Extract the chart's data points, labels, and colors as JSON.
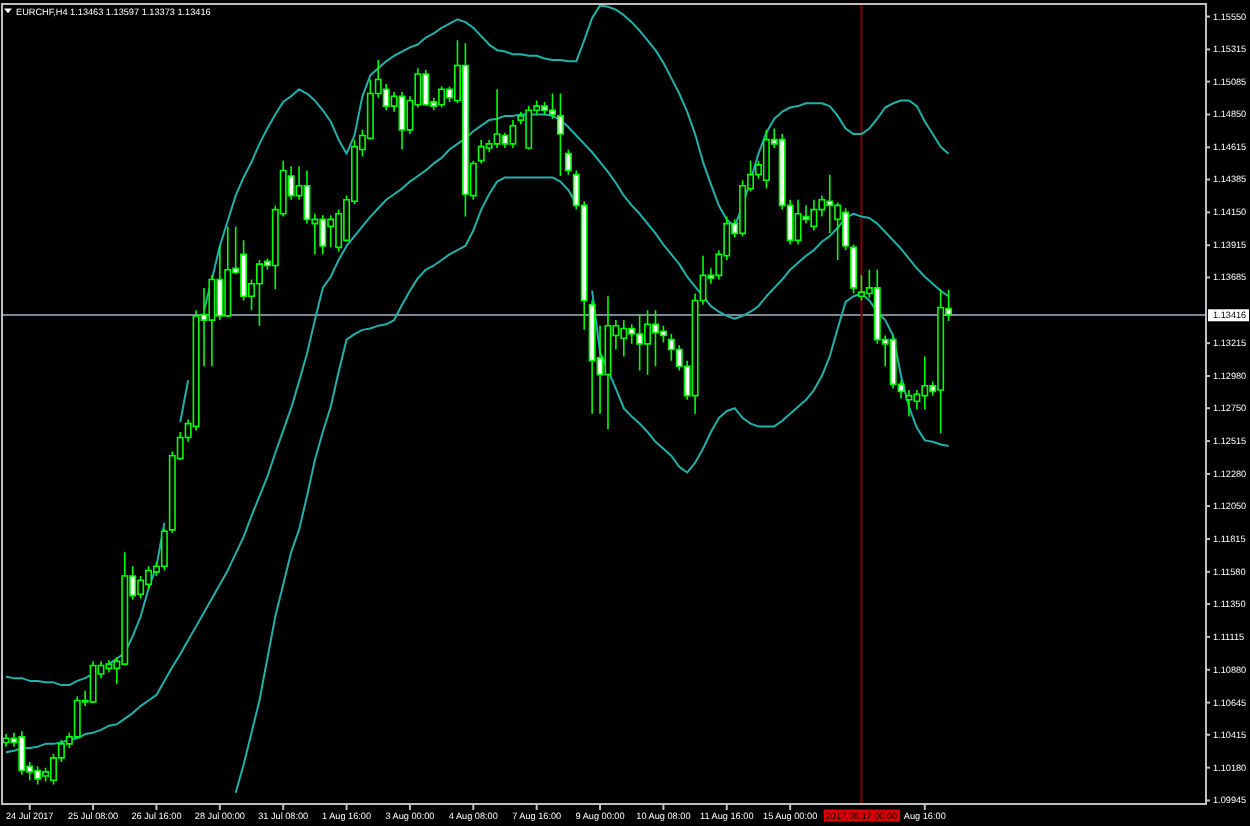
{
  "chart_data": {
    "type": "candlestick",
    "title": "EURCHF,H4 1.13463 1.13597 1.13373 1.13416",
    "color": "#00ff00",
    "categories": [
      null,
      null,
      null,
      "24 Jul 2017",
      null,
      null,
      null,
      null,
      null,
      null,
      null,
      "25 Jul 08:00",
      null,
      null,
      null,
      null,
      null,
      null,
      null,
      "26 Jul 16:00",
      null,
      null,
      null,
      null,
      null,
      null,
      null,
      "28 Jul 00:00",
      null,
      null,
      null,
      null,
      null,
      null,
      null,
      "31 Jul 08:00",
      null,
      null,
      null,
      null,
      null,
      null,
      null,
      "1 Aug 16:00",
      null,
      null,
      null,
      null,
      null,
      null,
      null,
      "3 Aug 00:00",
      null,
      null,
      null,
      null,
      null,
      null,
      null,
      "4 Aug 08:00",
      null,
      null,
      null,
      null,
      null,
      null,
      null,
      "7 Aug 16:00",
      null,
      null,
      null,
      null,
      null,
      null,
      null,
      "9 Aug 00:00",
      null,
      null,
      null,
      null,
      null,
      null,
      null,
      "10 Aug 08:00",
      null,
      null,
      null,
      null,
      null,
      null,
      null,
      "11 Aug 16:00",
      null,
      null,
      null,
      null,
      null,
      null,
      null,
      "15 Aug 00:00",
      null,
      null,
      null,
      null,
      null,
      null,
      null,
      null,
      "2017.08.17 00:00",
      null,
      null,
      null,
      null,
      null,
      null,
      null,
      "Aug 16:00",
      null,
      null,
      null
    ],
    "ohlc": [
      [
        1.1036,
        1.1042,
        1.1033,
        1.1039
      ],
      [
        1.1039,
        1.1043,
        1.1033,
        1.1036
      ],
      [
        1.104,
        1.1044,
        1.1013,
        1.1016
      ],
      [
        1.1019,
        1.1022,
        1.1009,
        1.1015
      ],
      [
        1.1016,
        1.1019,
        1.1006,
        1.101
      ],
      [
        1.1012,
        1.1018,
        1.1008,
        1.1015
      ],
      [
        1.1009,
        1.1028,
        1.1006,
        1.1025
      ],
      [
        1.1025,
        1.1038,
        1.1022,
        1.1035
      ],
      [
        1.1035,
        1.1043,
        1.1032,
        1.104
      ],
      [
        1.104,
        1.1069,
        1.1039,
        1.1066
      ],
      [
        1.1066,
        1.1073,
        1.1062,
        1.1065
      ],
      [
        1.1065,
        1.1094,
        1.1064,
        1.1091
      ],
      [
        1.1085,
        1.1094,
        1.1082,
        1.1091
      ],
      [
        1.1089,
        1.1095,
        1.1086,
        1.1092
      ],
      [
        1.1089,
        1.1097,
        1.1078,
        1.1094
      ],
      [
        1.1092,
        1.1172,
        1.1091,
        1.1155
      ],
      [
        1.1155,
        1.1162,
        1.1138,
        1.1141
      ],
      [
        1.1142,
        1.1155,
        1.1139,
        1.1152
      ],
      [
        1.1149,
        1.1162,
        1.1146,
        1.1159
      ],
      [
        1.1158,
        1.1165,
        1.1155,
        1.1162
      ],
      [
        1.1162,
        1.1189,
        1.1159,
        1.1187
      ],
      [
        1.1188,
        1.1244,
        1.1186,
        1.1241
      ],
      [
        1.1239,
        1.1258,
        1.1238,
        1.1254
      ],
      [
        1.1254,
        1.1267,
        1.1251,
        1.1264
      ],
      [
        1.1262,
        1.1345,
        1.1259,
        1.1341
      ],
      [
        1.1342,
        1.1361,
        1.1305,
        1.1338
      ],
      [
        1.1338,
        1.137,
        1.1305,
        1.1367
      ],
      [
        1.1367,
        1.1391,
        1.1338,
        1.1341
      ],
      [
        1.1341,
        1.1405,
        1.134,
        1.1374
      ],
      [
        1.1375,
        1.1405,
        1.1371,
        1.1372
      ],
      [
        1.1385,
        1.1395,
        1.1352,
        1.1355
      ],
      [
        1.1355,
        1.1367,
        1.1345,
        1.1364
      ],
      [
        1.1364,
        1.1381,
        1.1334,
        1.1378
      ],
      [
        1.138,
        1.1382,
        1.1374,
        1.1377
      ],
      [
        1.1377,
        1.142,
        1.136,
        1.1417
      ],
      [
        1.1414,
        1.1452,
        1.1412,
        1.1445
      ],
      [
        1.1441,
        1.1448,
        1.1424,
        1.1427
      ],
      [
        1.1427,
        1.1448,
        1.1424,
        1.1434
      ],
      [
        1.1434,
        1.1445,
        1.1407,
        1.141
      ],
      [
        1.1407,
        1.1414,
        1.1385,
        1.141
      ],
      [
        1.141,
        1.1413,
        1.1385,
        1.1391
      ],
      [
        1.1405,
        1.1413,
        1.139,
        1.141
      ],
      [
        1.139,
        1.1417,
        1.1387,
        1.1414
      ],
      [
        1.1395,
        1.1427,
        1.1394,
        1.1424
      ],
      [
        1.1423,
        1.1467,
        1.1421,
        1.1462
      ],
      [
        1.146,
        1.1474,
        1.1455,
        1.147
      ],
      [
        1.1468,
        1.151,
        1.1467,
        1.15
      ],
      [
        1.15,
        1.1524,
        1.1497,
        1.151
      ],
      [
        1.1503,
        1.1507,
        1.1488,
        1.1491
      ],
      [
        1.1491,
        1.1501,
        1.1487,
        1.1498
      ],
      [
        1.1498,
        1.1501,
        1.146,
        1.1474
      ],
      [
        1.1474,
        1.1498,
        1.1471,
        1.1495
      ],
      [
        1.1492,
        1.1518,
        1.149,
        1.1514
      ],
      [
        1.1514,
        1.1517,
        1.1491,
        1.1492
      ],
      [
        1.1494,
        1.1497,
        1.1488,
        1.1491
      ],
      [
        1.1492,
        1.1505,
        1.149,
        1.1503
      ],
      [
        1.1503,
        1.1505,
        1.1494,
        1.1497
      ],
      [
        1.1495,
        1.1538,
        1.1493,
        1.152
      ],
      [
        1.152,
        1.1536,
        1.1412,
        1.1428
      ],
      [
        1.1427,
        1.1452,
        1.1424,
        1.145
      ],
      [
        1.1452,
        1.1467,
        1.145,
        1.1462
      ],
      [
        1.1461,
        1.1467,
        1.1458,
        1.1464
      ],
      [
        1.1464,
        1.1503,
        1.1461,
        1.1471
      ],
      [
        1.147,
        1.1472,
        1.1461,
        1.1464
      ],
      [
        1.1464,
        1.1481,
        1.1461,
        1.1477
      ],
      [
        1.1481,
        1.1487,
        1.1478,
        1.1484
      ],
      [
        1.1461,
        1.1491,
        1.146,
        1.1488
      ],
      [
        1.1488,
        1.1495,
        1.1485,
        1.1491
      ],
      [
        1.1491,
        1.1494,
        1.1485,
        1.1488
      ],
      [
        1.1488,
        1.15,
        1.1482,
        1.1485
      ],
      [
        1.1484,
        1.15,
        1.1441,
        1.1471
      ],
      [
        1.1457,
        1.146,
        1.1442,
        1.1445
      ],
      [
        1.1442,
        1.1445,
        1.1417,
        1.142
      ],
      [
        1.142,
        1.1423,
        1.1331,
        1.1352
      ],
      [
        1.1349,
        1.1352,
        1.1271,
        1.1309
      ],
      [
        1.1311,
        1.1334,
        1.1271,
        1.1299
      ],
      [
        1.1299,
        1.1355,
        1.126,
        1.1334
      ],
      [
        1.1327,
        1.1338,
        1.1317,
        1.1334
      ],
      [
        1.1325,
        1.1338,
        1.1312,
        1.1332
      ],
      [
        1.1332,
        1.1335,
        1.1321,
        1.1328
      ],
      [
        1.1328,
        1.1342,
        1.1302,
        1.1321
      ],
      [
        1.1321,
        1.1345,
        1.1299,
        1.1335
      ],
      [
        1.1335,
        1.1345,
        1.1305,
        1.1329
      ],
      [
        1.133,
        1.1334,
        1.1322,
        1.1327
      ],
      [
        1.1324,
        1.1328,
        1.1309,
        1.1317
      ],
      [
        1.1317,
        1.132,
        1.1302,
        1.1305
      ],
      [
        1.1305,
        1.1309,
        1.1281,
        1.1284
      ],
      [
        1.1284,
        1.1357,
        1.1271,
        1.1352
      ],
      [
        1.1352,
        1.1384,
        1.1349,
        1.137
      ],
      [
        1.137,
        1.1375,
        1.1364,
        1.1368
      ],
      [
        1.137,
        1.1388,
        1.1367,
        1.1385
      ],
      [
        1.1384,
        1.1412,
        1.1381,
        1.1407
      ],
      [
        1.1407,
        1.141,
        1.1397,
        1.14
      ],
      [
        1.14,
        1.1438,
        1.1398,
        1.1434
      ],
      [
        1.1432,
        1.1452,
        1.143,
        1.1442
      ],
      [
        1.1442,
        1.1452,
        1.1439,
        1.1449
      ],
      [
        1.1438,
        1.1474,
        1.1432,
        1.1467
      ],
      [
        1.1467,
        1.1475,
        1.1461,
        1.1464
      ],
      [
        1.1467,
        1.1471,
        1.1417,
        1.142
      ],
      [
        1.142,
        1.1424,
        1.1392,
        1.1395
      ],
      [
        1.1395,
        1.1424,
        1.1392,
        1.1414
      ],
      [
        1.1412,
        1.142,
        1.1407,
        1.141
      ],
      [
        1.1405,
        1.1424,
        1.1402,
        1.1417
      ],
      [
        1.1417,
        1.1427,
        1.1412,
        1.1424
      ],
      [
        1.1423,
        1.1442,
        1.14,
        1.142
      ],
      [
        1.141,
        1.1422,
        1.1381,
        1.142
      ],
      [
        1.1415,
        1.1418,
        1.1388,
        1.1391
      ],
      [
        1.139,
        1.1392,
        1.1357,
        1.1361
      ],
      [
        1.1355,
        1.137,
        1.1352,
        1.1358
      ],
      [
        1.1357,
        1.1374,
        1.1354,
        1.1361
      ],
      [
        1.1361,
        1.1374,
        1.1321,
        1.1324
      ],
      [
        1.1324,
        1.1327,
        1.1305,
        1.1321
      ],
      [
        1.1324,
        1.1327,
        1.1289,
        1.1292
      ],
      [
        1.1292,
        1.1295,
        1.1282,
        1.1287
      ],
      [
        1.1281,
        1.1288,
        1.1269,
        1.1284
      ],
      [
        1.128,
        1.1288,
        1.1274,
        1.1285
      ],
      [
        1.1284,
        1.1312,
        1.1274,
        1.1291
      ],
      [
        1.1291,
        1.1294,
        1.1284,
        1.1287
      ],
      [
        1.1288,
        1.136,
        1.1257,
        1.1347
      ],
      [
        1.13463,
        1.13597,
        1.13373,
        1.13416
      ]
    ],
    "series": [
      {
        "type": "line",
        "color": "#20b2aa",
        "values": [
          1.1083,
          1.1082,
          1.1082,
          1.108,
          1.108,
          1.1079,
          1.1079,
          1.1077,
          1.1077,
          1.108,
          1.1082,
          1.1085,
          null,
          1.1092,
          1.1096,
          1.11,
          1.1112,
          1.1126,
          1.1146,
          1.1162,
          1.1193,
          null,
          1.1265,
          1.1295,
          null,
          1.1345,
          1.1367,
          1.1391,
          1.1409,
          1.1427,
          1.144,
          1.1451,
          1.1464,
          1.1475,
          1.1485,
          1.1494,
          1.1498,
          1.1503,
          1.15,
          1.1495,
          1.1488,
          1.148,
          1.1467,
          1.1457,
          1.147,
          1.1498,
          1.1513,
          1.1518,
          1.1523,
          1.1527,
          1.153,
          1.1533,
          1.1535,
          1.154,
          1.1543,
          1.1547,
          1.155,
          1.1553,
          1.1551,
          1.1547,
          1.1541,
          1.1535,
          1.1531,
          1.153,
          1.1528,
          1.1528,
          1.1527,
          1.1527,
          1.1525,
          1.1524,
          1.1524,
          1.1523,
          1.1523,
          1.1538,
          1.1554,
          1.1563,
          1.1562,
          1.156,
          1.1556,
          1.1551,
          1.1545,
          1.1538,
          1.1531,
          1.1522,
          1.1511,
          1.15,
          1.1487,
          1.1471,
          1.1451,
          1.1435,
          1.142,
          1.141,
          1.1405,
          1.142,
          1.1438,
          1.1457,
          1.1472,
          1.1482,
          1.1487,
          1.149,
          1.1491,
          1.1493,
          1.1493,
          1.1493,
          1.1491,
          1.1484,
          1.1475,
          1.1471,
          1.1471,
          1.1475,
          1.1482,
          1.149,
          1.1493,
          1.1495,
          1.1495,
          1.1491,
          1.148,
          1.1471,
          1.1462,
          1.1457
        ]
      },
      {
        "type": "line",
        "color": "#20b2aa",
        "values": [
          1.1029,
          1.103,
          1.1032,
          1.1032,
          1.1033,
          1.1035,
          1.1035,
          1.1036,
          1.1038,
          1.1039,
          1.1042,
          1.1043,
          1.1045,
          1.1048,
          1.1049,
          1.1053,
          1.1057,
          1.1062,
          1.1066,
          1.107,
          1.108,
          1.109,
          1.1099,
          1.1109,
          1.1119,
          1.1129,
          1.1139,
          1.1149,
          1.1159,
          1.1171,
          1.1183,
          1.1198,
          1.1212,
          1.1226,
          1.1243,
          1.1259,
          1.1275,
          1.1294,
          1.1314,
          1.1338,
          1.1361,
          1.1369,
          1.1381,
          1.1391,
          1.1398,
          1.1405,
          1.1412,
          1.1418,
          1.1424,
          1.1428,
          1.1432,
          1.1437,
          1.1441,
          1.1445,
          1.145,
          1.1454,
          1.146,
          1.1464,
          1.1468,
          1.1473,
          1.1477,
          1.1481,
          1.1482,
          1.1484,
          1.1484,
          1.1485,
          1.1485,
          1.1485,
          1.1485,
          1.1484,
          1.1481,
          1.1476,
          1.147,
          1.1464,
          1.1458,
          1.1451,
          1.1444,
          1.1436,
          1.1427,
          1.142,
          1.1414,
          1.1407,
          1.14,
          1.1392,
          1.1385,
          1.1378,
          1.1369,
          1.1362,
          1.1355,
          1.1348,
          1.1344,
          1.1341,
          1.1339,
          1.1341,
          1.1344,
          1.1348,
          1.1355,
          1.1361,
          1.1367,
          1.1374,
          1.1379,
          1.1384,
          1.1388,
          1.1394,
          1.1398,
          1.1404,
          1.1411,
          1.1414,
          1.1412,
          1.1411,
          1.1407,
          1.1401,
          1.1395,
          1.1389,
          1.1382,
          1.1375,
          1.1369,
          1.1364,
          1.1359,
          1.1355
        ]
      },
      {
        "type": "line",
        "color": "#20b2aa",
        "values": [
          null,
          null,
          null,
          null,
          null,
          null,
          null,
          null,
          null,
          null,
          null,
          null,
          null,
          null,
          null,
          null,
          null,
          null,
          null,
          null,
          null,
          null,
          null,
          null,
          null,
          null,
          null,
          null,
          null,
          1.1,
          1.102,
          1.1043,
          1.1066,
          1.1096,
          1.1126,
          1.1149,
          1.1172,
          1.1188,
          1.1212,
          1.1238,
          1.1258,
          1.1276,
          1.1301,
          1.1324,
          1.1328,
          1.1331,
          1.1332,
          1.1334,
          1.1335,
          1.1338,
          1.1349,
          1.1359,
          1.1368,
          1.1374,
          1.1377,
          1.1381,
          1.1385,
          1.1388,
          1.1391,
          1.1402,
          1.1417,
          1.1428,
          1.1437,
          1.144,
          1.144,
          1.144,
          1.144,
          1.144,
          1.144,
          1.144,
          1.1437,
          1.1431,
          1.1421,
          null,
          1.1359,
          1.1315,
          1.1302,
          1.1289,
          1.1275,
          1.1269,
          1.1264,
          1.1258,
          1.1251,
          1.1246,
          1.1241,
          1.1233,
          1.1229,
          1.1236,
          1.1246,
          1.1258,
          1.1268,
          1.1273,
          1.1275,
          1.1268,
          1.1264,
          1.1262,
          1.1262,
          1.1262,
          1.1266,
          1.1271,
          1.1276,
          1.1281,
          1.1288,
          1.1298,
          1.1312,
          1.1332,
          1.1351,
          1.1355,
          1.1357,
          1.1352,
          1.1344,
          1.1338,
          1.1327,
          1.1298,
          1.1276,
          1.1261,
          1.1252,
          1.1251,
          1.1249,
          1.1248
        ]
      }
    ],
    "ref_lines": [
      {
        "axis": "y",
        "value": 1.13416,
        "label": "1.13416",
        "color": "#778899"
      },
      {
        "axis": "x",
        "value": "2017.08.17 00:00",
        "color": "#800000"
      }
    ],
    "ylim": [
      1.0992,
      1.1564
    ],
    "yticks": [
      {
        "value": 1.1555,
        "label": "1.15550"
      },
      1.15315,
      1.15085,
      {
        "value": 1.1485,
        "label": "1.14850"
      },
      1.14615,
      1.14385,
      {
        "value": 1.1415,
        "label": "1.14150"
      },
      1.13915,
      1.13685,
      1.13215,
      {
        "value": 1.1298,
        "label": "1.12980"
      },
      {
        "value": 1.1275,
        "label": "1.12750"
      },
      1.12515,
      {
        "value": 1.1228,
        "label": "1.12280"
      },
      {
        "value": 1.1205,
        "label": "1.12050"
      },
      1.11815,
      {
        "value": 1.1158,
        "label": "1.11580"
      },
      {
        "value": 1.1135,
        "label": "1.11350"
      },
      1.11115,
      {
        "value": 1.1088,
        "label": "1.10880"
      },
      1.10645,
      1.10415,
      {
        "value": 1.1018,
        "label": "1.10180"
      },
      1.09945
    ]
  }
}
